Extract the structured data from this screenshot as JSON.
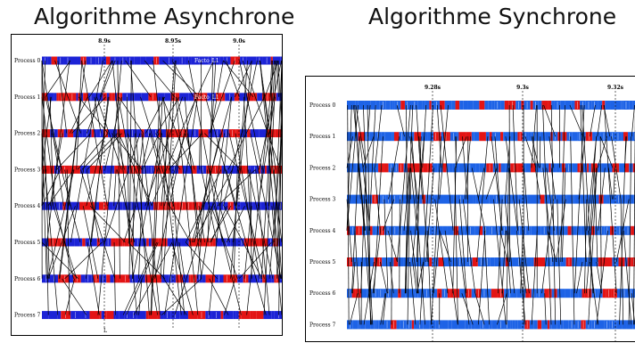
{
  "titles": {
    "left": "Algorithme Asynchrone",
    "right": "Algorithme Synchrone"
  },
  "colors": {
    "blue": "#1c23d6",
    "red": "#e31414",
    "bright_blue": "#1e63e6",
    "line": "#000000"
  },
  "left_panel": {
    "processes": [
      "Process 0",
      "Process 1",
      "Process 2",
      "Process 3",
      "Process 4",
      "Process 5",
      "Process 6",
      "Process 7"
    ],
    "time_labels": [
      "8.9s",
      "8.95s",
      "9.0s"
    ],
    "cut_labels": [
      "Facto_L1",
      "Facto_L1"
    ],
    "bottom_label": "L"
  },
  "right_panel": {
    "processes": [
      "Process 0",
      "Process 1",
      "Process 2",
      "Process 3",
      "Process 4",
      "Process 5",
      "Process 6",
      "Process 7"
    ],
    "time_labels": [
      "9.28s",
      "9.3s",
      "9.32s"
    ]
  }
}
